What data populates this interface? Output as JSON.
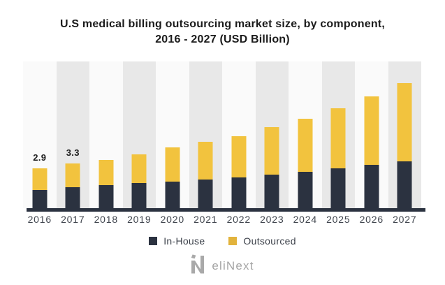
{
  "title": {
    "line1": "U.S medical billing outsourcing market size, by component,",
    "line2": "2016 - 2027 (USD Billion)"
  },
  "chart_data": {
    "type": "bar",
    "stacked": true,
    "title": "U.S medical billing outsourcing market size, by component, 2016 - 2027 (USD Billion)",
    "units": "USD Billion",
    "categories": [
      "2016",
      "2017",
      "2018",
      "2019",
      "2020",
      "2021",
      "2022",
      "2023",
      "2024",
      "2025",
      "2026",
      "2027"
    ],
    "series": [
      {
        "name": "In-House",
        "color": "#2b3240",
        "values": [
          1.3,
          1.55,
          1.7,
          1.85,
          1.95,
          2.1,
          2.25,
          2.45,
          2.65,
          2.9,
          3.15,
          3.4
        ]
      },
      {
        "name": "Outsourced",
        "color": "#f2c33e",
        "values": [
          1.6,
          1.7,
          1.8,
          2.05,
          2.45,
          2.7,
          3.0,
          3.45,
          3.85,
          4.35,
          4.95,
          5.7
        ]
      }
    ],
    "totals": [
      2.9,
      3.3,
      3.5,
      3.9,
      4.4,
      4.8,
      5.25,
      5.9,
      6.5,
      7.25,
      8.1,
      9.1
    ],
    "bar_labels": [
      {
        "category": "2016",
        "value": "2.9"
      },
      {
        "category": "2017",
        "value": "3.3"
      }
    ],
    "xlabel": "",
    "ylabel": "",
    "ylim": [
      0,
      10.5
    ],
    "grid": false,
    "legend_position": "bottom",
    "background_stripes": [
      "#fafafa",
      "#e8e8e8"
    ]
  },
  "colors": {
    "in_house": "#2b3240",
    "outsourced_bar": "#f2c33e",
    "outsourced_legend": "#e2b33c",
    "axis_line": "#2b3240",
    "stripe_light": "#fafafa",
    "stripe_dark": "#e8e8e8",
    "title_text": "#1b1b1b",
    "tick_text": "#40454e",
    "brand_gray": "#a5a5a5"
  },
  "legend": {
    "items": [
      {
        "label": "In-House",
        "color": "#2b3240"
      },
      {
        "label": "Outsourced",
        "color": "#e2b33c"
      }
    ]
  },
  "footer": {
    "brand_text": "eliNext",
    "logo_icon": "elinext-n-icon"
  }
}
